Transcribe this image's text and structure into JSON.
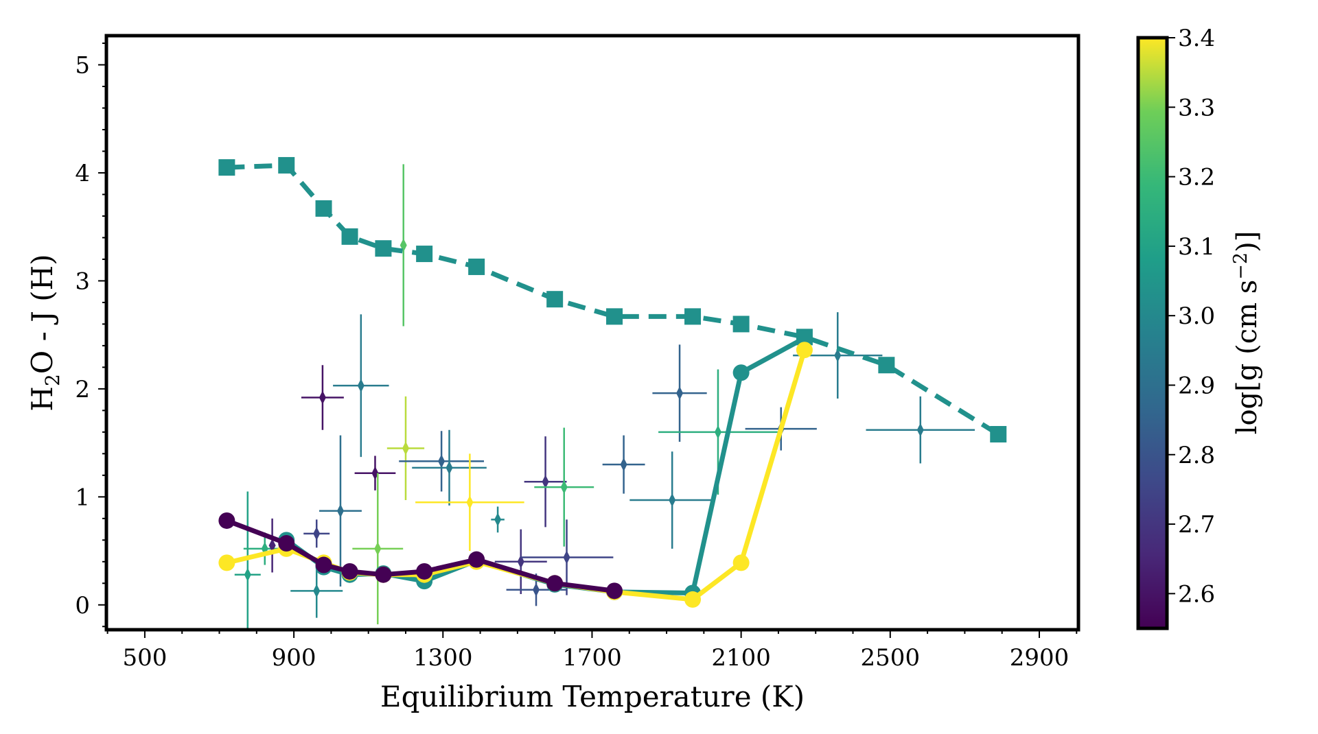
{
  "chart_data": {
    "type": "scatter",
    "title": "",
    "xlabel": "Equilibrium Temperature (K)",
    "ylabel_main": "H",
    "ylabel_sub": "2",
    "ylabel_rest": "O - J (H)",
    "xlim": [
      397,
      3005
    ],
    "ylim": [
      -0.23,
      5.27
    ],
    "xticks": [
      500,
      900,
      1300,
      1700,
      2100,
      2500,
      2900
    ],
    "yticks": [
      0,
      1,
      2,
      3,
      4,
      5
    ],
    "grid": false,
    "colorbar": {
      "label_main": "log[g (cm s",
      "label_sup": "−2",
      "label_end": ")]",
      "range": [
        2.55,
        3.4
      ],
      "ticks": [
        "2.6",
        "2.7",
        "2.8",
        "2.9",
        "3.0",
        "3.1",
        "3.2",
        "3.3",
        "3.4"
      ],
      "colormap": "viridis"
    },
    "lines": [
      {
        "style": "dashed",
        "marker": "square",
        "color": "#21918c",
        "x": [
          720,
          880,
          980,
          1050,
          1140,
          1250,
          1390,
          1600,
          1760,
          1970,
          2100,
          2270,
          2490,
          2790
        ],
        "y": [
          4.05,
          4.07,
          3.67,
          3.41,
          3.3,
          3.25,
          3.13,
          2.83,
          2.67,
          2.67,
          2.6,
          2.48,
          2.22,
          1.58
        ]
      },
      {
        "style": "solid",
        "marker": "circle",
        "color": "#21918c",
        "x": [
          880,
          980,
          1050,
          1140,
          1250,
          1390,
          1600,
          1760,
          1970,
          2100,
          2270
        ],
        "y": [
          0.6,
          0.35,
          0.28,
          0.29,
          0.22,
          0.41,
          0.19,
          0.12,
          0.11,
          2.15,
          2.47
        ]
      },
      {
        "style": "solid",
        "marker": "circle",
        "color": "#fde725",
        "x": [
          720,
          880,
          980,
          1050,
          1140,
          1250,
          1390,
          1600,
          1760,
          1970,
          2100,
          2270
        ],
        "y": [
          0.39,
          0.52,
          0.39,
          0.3,
          0.28,
          0.28,
          0.4,
          0.2,
          0.12,
          0.05,
          0.39,
          2.36
        ]
      },
      {
        "style": "solid",
        "marker": "circle",
        "color": "#440154",
        "x": [
          720,
          880,
          980,
          1050,
          1140,
          1250,
          1390,
          1600,
          1760
        ],
        "y": [
          0.78,
          0.57,
          0.37,
          0.31,
          0.28,
          0.31,
          0.42,
          0.2,
          0.13
        ]
      }
    ],
    "points": [
      {
        "x": 776,
        "y": 0.28,
        "xerr": 35,
        "yerr": 0.77,
        "logg": 3.1
      },
      {
        "x": 822,
        "y": 0.52,
        "xerr": 57,
        "yerr": 0.15,
        "logg": 3.15
      },
      {
        "x": 842,
        "y": 0.55,
        "xerr": 0,
        "yerr": 0.25,
        "logg": 2.65
      },
      {
        "x": 961,
        "y": 0.66,
        "xerr": 35,
        "yerr": 0.13,
        "logg": 2.75
      },
      {
        "x": 961,
        "y": 0.13,
        "xerr": 70,
        "yerr": 0.25,
        "logg": 3.0
      },
      {
        "x": 977,
        "y": 1.92,
        "xerr": 57,
        "yerr": 0.3,
        "logg": 2.6
      },
      {
        "x": 1025,
        "y": 0.87,
        "xerr": 57,
        "yerr": 0.7,
        "logg": 2.9
      },
      {
        "x": 1080,
        "y": 2.03,
        "xerr": 75,
        "yerr": 0.66,
        "logg": 2.95
      },
      {
        "x": 1118,
        "y": 1.22,
        "xerr": 55,
        "yerr": 0.16,
        "logg": 2.6
      },
      {
        "x": 1125,
        "y": 0.52,
        "xerr": 68,
        "yerr": 0.7,
        "logg": 3.3
      },
      {
        "x": 1194,
        "y": 3.33,
        "xerr": 0,
        "yerr": 0.75,
        "logg": 3.25
      },
      {
        "x": 1200,
        "y": 1.45,
        "xerr": 50,
        "yerr": 0.48,
        "logg": 3.35
      },
      {
        "x": 1296,
        "y": 1.33,
        "xerr": 114,
        "yerr": 0.28,
        "logg": 2.85
      },
      {
        "x": 1317,
        "y": 1.27,
        "xerr": 100,
        "yerr": 0.35,
        "logg": 2.95
      },
      {
        "x": 1372,
        "y": 0.95,
        "xerr": 146,
        "yerr": 0.45,
        "logg": 3.4
      },
      {
        "x": 1447,
        "y": 0.79,
        "xerr": 18,
        "yerr": 0.12,
        "logg": 3.0
      },
      {
        "x": 1509,
        "y": 0.4,
        "xerr": 70,
        "yerr": 0.3,
        "logg": 2.7
      },
      {
        "x": 1550,
        "y": 0.14,
        "xerr": 80,
        "yerr": 0.15,
        "logg": 2.8
      },
      {
        "x": 1575,
        "y": 1.14,
        "xerr": 57,
        "yerr": 0.42,
        "logg": 2.7
      },
      {
        "x": 1625,
        "y": 1.09,
        "xerr": 80,
        "yerr": 0.55,
        "logg": 3.2
      },
      {
        "x": 1632,
        "y": 0.44,
        "xerr": 125,
        "yerr": 0.35,
        "logg": 2.75
      },
      {
        "x": 1785,
        "y": 1.3,
        "xerr": 57,
        "yerr": 0.27,
        "logg": 2.85
      },
      {
        "x": 1915,
        "y": 0.97,
        "xerr": 114,
        "yerr": 0.45,
        "logg": 2.95
      },
      {
        "x": 1935,
        "y": 1.96,
        "xerr": 73,
        "yerr": 0.45,
        "logg": 2.85
      },
      {
        "x": 2038,
        "y": 1.6,
        "xerr": 160,
        "yerr": 0.58,
        "logg": 3.15
      },
      {
        "x": 2207,
        "y": 1.63,
        "xerr": 96,
        "yerr": 0.2,
        "logg": 2.85
      },
      {
        "x": 2359,
        "y": 2.31,
        "xerr": 120,
        "yerr": 0.4,
        "logg": 2.95
      },
      {
        "x": 2581,
        "y": 1.62,
        "xerr": 146,
        "yerr": 0.31,
        "logg": 2.95
      }
    ]
  }
}
